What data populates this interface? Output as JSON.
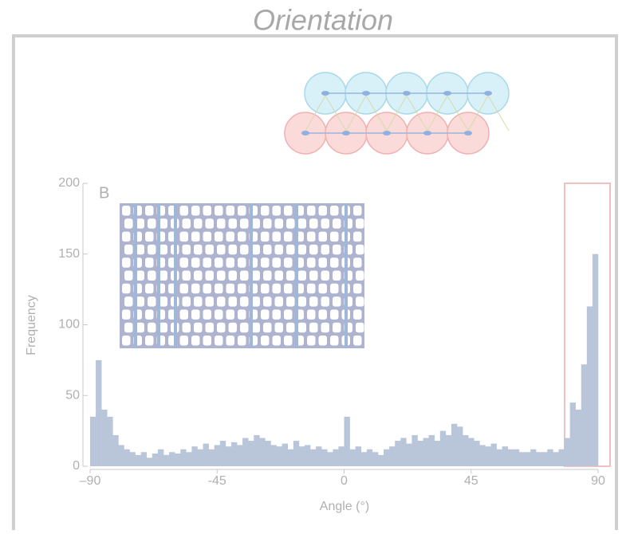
{
  "chart_data": {
    "type": "histogram",
    "title": "Orientation",
    "panel_label": "B",
    "xlabel": "Angle (°)",
    "ylabel": "Frequency",
    "bins": [
      -90,
      -88,
      -86,
      -84,
      -82,
      -80,
      -78,
      -76,
      -74,
      -72,
      -70,
      -68,
      -66,
      -64,
      -62,
      -60,
      -58,
      -56,
      -54,
      -52,
      -50,
      -48,
      -46,
      -44,
      -42,
      -40,
      -38,
      -36,
      -34,
      -32,
      -30,
      -28,
      -26,
      -24,
      -22,
      -20,
      -18,
      -16,
      -14,
      -12,
      -10,
      -8,
      -6,
      -4,
      -2,
      0,
      2,
      4,
      6,
      8,
      10,
      12,
      14,
      16,
      18,
      20,
      22,
      24,
      26,
      28,
      30,
      32,
      34,
      36,
      38,
      40,
      42,
      44,
      46,
      48,
      50,
      52,
      54,
      56,
      58,
      60,
      62,
      64,
      66,
      68,
      70,
      72,
      74,
      76,
      78,
      80,
      82,
      84,
      86,
      88,
      90
    ],
    "counts": [
      35,
      75,
      40,
      35,
      22,
      15,
      12,
      10,
      8,
      10,
      6,
      9,
      12,
      8,
      10,
      9,
      12,
      10,
      14,
      12,
      16,
      12,
      15,
      18,
      14,
      17,
      15,
      20,
      18,
      22,
      20,
      18,
      15,
      14,
      16,
      12,
      18,
      14,
      15,
      12,
      14,
      12,
      10,
      12,
      14,
      35,
      12,
      14,
      10,
      12,
      10,
      8,
      12,
      14,
      18,
      20,
      16,
      22,
      18,
      20,
      22,
      18,
      25,
      22,
      30,
      28,
      22,
      20,
      18,
      15,
      14,
      16,
      12,
      14,
      12,
      12,
      10,
      10,
      12,
      10,
      10,
      12,
      10,
      12,
      20,
      45,
      40,
      72,
      113,
      150
    ],
    "color": "#b9c6d9",
    "xlim": [
      -90,
      90
    ],
    "xticks": [
      {
        "value": -90,
        "label": "–90"
      },
      -45,
      0,
      45,
      90
    ],
    "ylim": [
      0,
      200
    ],
    "yticks": [
      0,
      50,
      100,
      150,
      200
    ]
  }
}
